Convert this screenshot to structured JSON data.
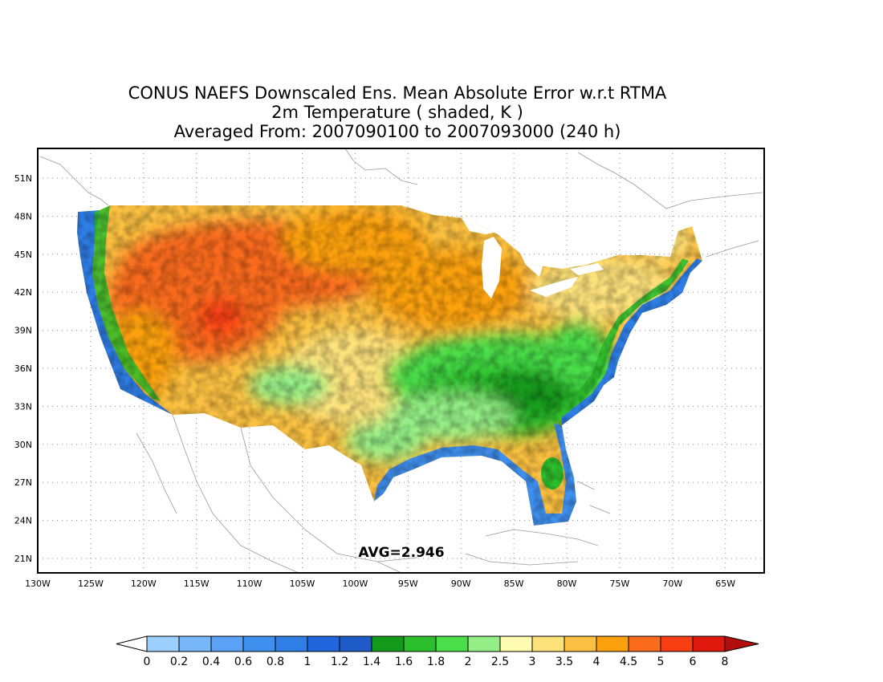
{
  "title": {
    "line1": "CONUS NAEFS Downscaled Ens. Mean Absolute Error w.r.t RTMA",
    "line2": "2m Temperature ( shaded, K )",
    "line3": "Averaged From: 2007090100 to 2007093000 (240 h)"
  },
  "map": {
    "lon_range": [
      -130,
      -61
    ],
    "lat_range": [
      19.5,
      52.5
    ],
    "grid": true,
    "lon_ticks": [
      "130W",
      "125W",
      "120W",
      "115W",
      "110W",
      "105W",
      "100W",
      "95W",
      "90W",
      "85W",
      "80W",
      "75W",
      "70W",
      "65W"
    ],
    "lat_ticks": [
      "51N",
      "48N",
      "45N",
      "42N",
      "39N",
      "36N",
      "33N",
      "30N",
      "27N",
      "24N",
      "21N"
    ],
    "avg_label": "AVG=2.946"
  },
  "colorbar": {
    "labels": [
      "0",
      "0.2",
      "0.4",
      "0.6",
      "0.8",
      "1",
      "1.2",
      "1.4",
      "1.6",
      "1.8",
      "2",
      "2.5",
      "3",
      "3.5",
      "4",
      "4.5",
      "5",
      "6",
      "8"
    ],
    "colors": [
      "#9ed0ff",
      "#78b8fa",
      "#5aa2f5",
      "#3f8fee",
      "#2e7ee6",
      "#2266dd",
      "#1e5bc7",
      "#139a1a",
      "#2cbe2c",
      "#4ade4a",
      "#94ee86",
      "#fefcb0",
      "#fde27c",
      "#fbc041",
      "#fca10e",
      "#fa6b1b",
      "#fa3e14",
      "#e0190f",
      "#b30e0e"
    ],
    "under_color": "#ffffff"
  }
}
